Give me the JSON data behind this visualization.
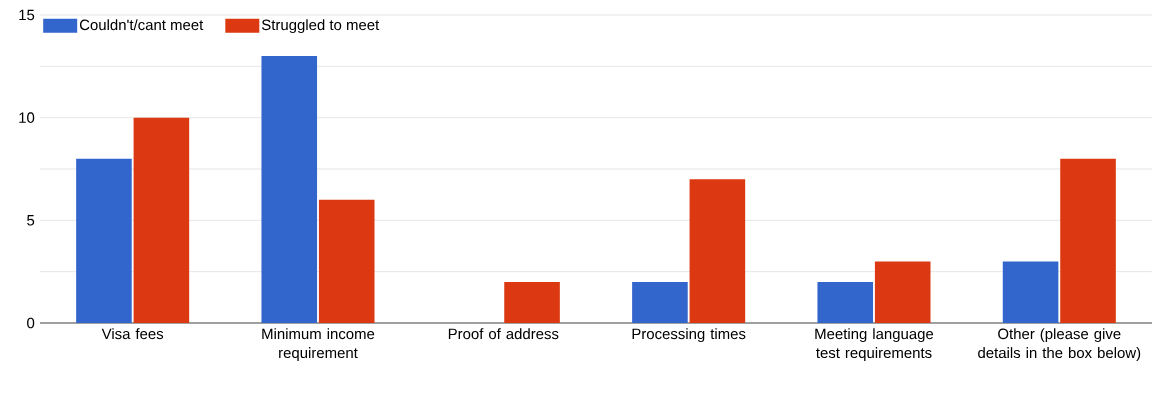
{
  "chart_data": {
    "type": "bar",
    "categories": [
      "Visa fees",
      "Minimum income requirement",
      "Proof of address",
      "Processing times",
      "Meeting language test requirements",
      "Other (please give details in the box below)"
    ],
    "series": [
      {
        "name": "Couldn't/cant meet",
        "color": "#3366cc",
        "values": [
          8,
          13,
          0,
          2,
          2,
          3
        ]
      },
      {
        "name": "Struggled to meet",
        "color": "#dc3912",
        "values": [
          10,
          6,
          2,
          7,
          3,
          8
        ]
      }
    ],
    "ylim": [
      0,
      15
    ],
    "yticks": [
      0,
      {
        "value": 2.5,
        "label": null
      },
      5,
      {
        "value": 7.5,
        "label": null
      },
      10,
      {
        "value": 12.5,
        "label": null
      },
      15
    ],
    "grid": "y",
    "legend": "top left"
  }
}
